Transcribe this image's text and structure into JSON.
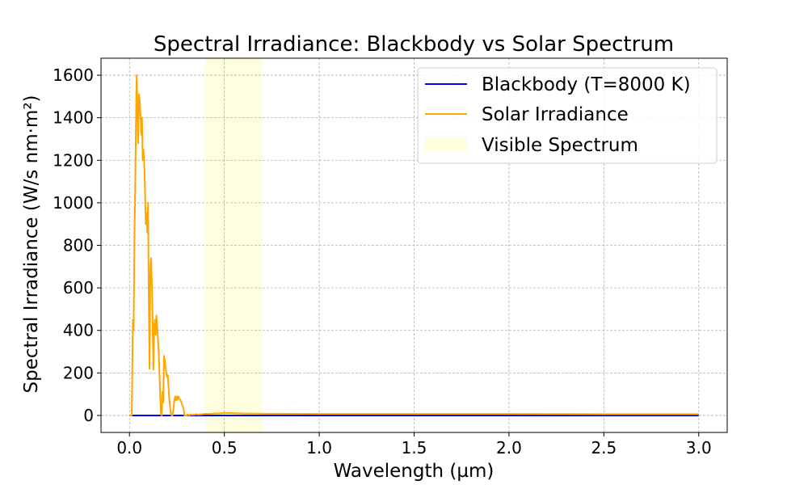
{
  "chart_data": {
    "type": "line",
    "title": "Spectral Irradiance: Blackbody vs Solar Spectrum",
    "xlabel": "Wavelength (µm)",
    "ylabel": "Spectral Irradiance (W/s nm·m²)",
    "xlim": [
      -0.15,
      3.15
    ],
    "ylim": [
      -80,
      1680
    ],
    "xticks": [
      0.0,
      0.5,
      1.0,
      1.5,
      2.0,
      2.5,
      3.0
    ],
    "xtick_labels": [
      "0.0",
      "0.5",
      "1.0",
      "1.5",
      "2.0",
      "2.5",
      "3.0"
    ],
    "yticks": [
      0,
      200,
      400,
      600,
      800,
      1000,
      1200,
      1400,
      1600
    ],
    "ytick_labels": [
      "0",
      "200",
      "400",
      "600",
      "800",
      "1000",
      "1200",
      "1400",
      "1600"
    ],
    "grid": true,
    "legend_position": "top-right",
    "shaded_regions": [
      {
        "name": "Visible Spectrum",
        "x_range": [
          0.4,
          0.7
        ],
        "color": "#ffffe0"
      }
    ],
    "series": [
      {
        "name": "Blackbody (T=8000 K)",
        "color": "#0000ff",
        "x": [
          0.0,
          3.0
        ],
        "values": [
          0,
          0
        ]
      },
      {
        "name": "Solar Irradiance",
        "color": "#ffa500",
        "x": [
          0.0,
          0.012,
          0.018,
          0.022,
          0.026,
          0.03,
          0.034,
          0.038,
          0.042,
          0.046,
          0.05,
          0.054,
          0.058,
          0.062,
          0.066,
          0.07,
          0.074,
          0.078,
          0.082,
          0.086,
          0.09,
          0.094,
          0.098,
          0.102,
          0.106,
          0.11,
          0.114,
          0.118,
          0.122,
          0.126,
          0.13,
          0.134,
          0.138,
          0.142,
          0.146,
          0.15,
          0.154,
          0.158,
          0.162,
          0.166,
          0.17,
          0.174,
          0.178,
          0.182,
          0.186,
          0.19,
          0.194,
          0.198,
          0.202,
          0.206,
          0.21,
          0.214,
          0.218,
          0.222,
          0.226,
          0.23,
          0.234,
          0.238,
          0.242,
          0.246,
          0.25,
          0.254,
          0.258,
          0.262,
          0.266,
          0.27,
          0.274,
          0.278,
          0.282,
          0.286,
          0.29,
          0.294,
          0.298,
          0.302,
          0.306,
          0.31,
          0.314,
          0.318,
          0.322,
          0.326,
          0.33,
          0.334,
          0.34,
          0.35,
          0.36,
          0.38,
          0.4,
          0.42,
          0.44,
          0.46,
          0.48,
          0.5,
          0.52,
          0.54,
          0.56,
          0.58,
          0.6,
          0.65,
          0.7,
          0.8,
          1.0,
          1.5,
          2.0,
          2.5,
          3.0
        ],
        "values": [
          0,
          0,
          450,
          400,
          820,
          1050,
          1350,
          1600,
          1450,
          1280,
          1510,
          1480,
          1420,
          1320,
          1400,
          1200,
          1250,
          1180,
          1050,
          900,
          950,
          860,
          1000,
          520,
          220,
          700,
          740,
          620,
          450,
          215,
          420,
          450,
          380,
          470,
          420,
          360,
          300,
          200,
          90,
          10,
          0,
          110,
          60,
          280,
          260,
          230,
          200,
          180,
          190,
          130,
          75,
          40,
          10,
          0,
          0,
          20,
          50,
          80,
          90,
          70,
          88,
          75,
          90,
          80,
          75,
          70,
          60,
          50,
          40,
          30,
          0,
          0,
          0,
          0,
          5,
          3,
          0,
          4,
          2,
          5,
          3,
          4,
          3,
          6,
          4,
          5,
          8,
          7,
          9,
          10,
          10,
          12,
          11,
          11,
          10,
          10,
          9,
          9,
          8,
          8,
          7,
          7,
          7,
          6,
          6
        ]
      }
    ]
  }
}
